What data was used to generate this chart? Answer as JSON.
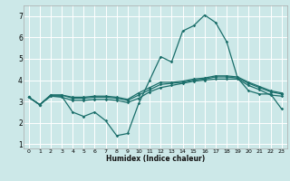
{
  "xlabel": "Humidex (Indice chaleur)",
  "bg_color": "#cce8e8",
  "grid_color": "#ffffff",
  "line_color": "#1a6e6a",
  "xlim": [
    -0.5,
    23.5
  ],
  "ylim": [
    0.8,
    7.5
  ],
  "xticks": [
    0,
    1,
    2,
    3,
    4,
    5,
    6,
    7,
    8,
    9,
    10,
    11,
    12,
    13,
    14,
    15,
    16,
    17,
    18,
    19,
    20,
    21,
    22,
    23
  ],
  "yticks": [
    1,
    2,
    3,
    4,
    5,
    6,
    7
  ],
  "curve1": [
    3.2,
    2.85,
    3.25,
    3.25,
    2.5,
    2.3,
    2.5,
    2.1,
    1.4,
    1.5,
    2.9,
    4.0,
    5.1,
    4.85,
    6.3,
    6.55,
    7.05,
    6.7,
    5.8,
    4.1,
    3.5,
    3.35,
    3.35,
    2.65
  ],
  "curve2": [
    3.2,
    2.85,
    3.25,
    3.2,
    3.05,
    3.05,
    3.1,
    3.1,
    3.05,
    2.95,
    3.15,
    3.45,
    3.65,
    3.75,
    3.85,
    3.95,
    4.0,
    4.05,
    4.05,
    4.05,
    3.75,
    3.55,
    3.3,
    3.25
  ],
  "curve3": [
    3.2,
    2.85,
    3.3,
    3.3,
    3.15,
    3.15,
    3.2,
    3.2,
    3.15,
    3.05,
    3.3,
    3.55,
    3.8,
    3.85,
    3.9,
    4.0,
    4.05,
    4.15,
    4.15,
    4.1,
    3.85,
    3.65,
    3.45,
    3.35
  ],
  "curve4": [
    3.2,
    2.85,
    3.3,
    3.3,
    3.2,
    3.2,
    3.25,
    3.25,
    3.2,
    3.1,
    3.4,
    3.65,
    3.9,
    3.9,
    3.95,
    4.05,
    4.1,
    4.2,
    4.2,
    4.15,
    3.9,
    3.7,
    3.5,
    3.4
  ]
}
